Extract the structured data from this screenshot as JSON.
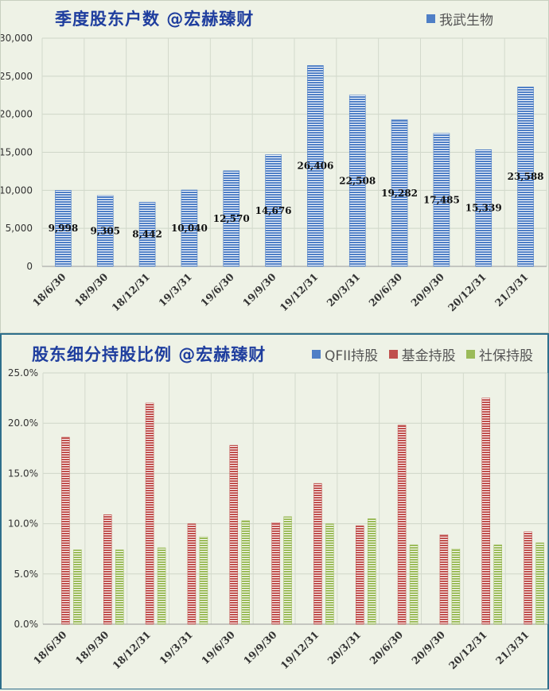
{
  "chart_data": [
    {
      "type": "bar",
      "title": "季度股东户数 @宏赫臻财",
      "categories": [
        "18/6/30",
        "18/9/30",
        "18/12/31",
        "19/3/31",
        "19/6/30",
        "19/9/30",
        "19/12/31",
        "20/3/31",
        "20/6/30",
        "20/9/30",
        "20/12/31",
        "21/3/31"
      ],
      "series": [
        {
          "name": "我武生物",
          "values": [
            9998,
            9305,
            8442,
            10040,
            12570,
            14676,
            26406,
            22508,
            19282,
            17485,
            15339,
            23588
          ],
          "color": "#4f7fc6"
        }
      ],
      "data_labels": [
        "9,998",
        "9,305",
        "8,442",
        "10,040",
        "12,570",
        "14,676",
        "26,406",
        "22,508",
        "19,282",
        "17,485",
        "15,339",
        "23,588"
      ],
      "ylim": [
        0,
        30000
      ],
      "yticks": [
        0,
        5000,
        10000,
        15000,
        20000,
        25000,
        30000
      ],
      "ytick_labels": [
        "0",
        "5,000",
        "10,000",
        "15,000",
        "20,000",
        "25,000",
        "30,000"
      ],
      "legend_position": "top-right",
      "grid": true
    },
    {
      "type": "bar",
      "title": "股东细分持股比例 @宏赫臻财",
      "categories": [
        "18/6/30",
        "18/9/30",
        "18/12/31",
        "19/3/31",
        "19/6/30",
        "19/9/30",
        "19/12/31",
        "20/3/31",
        "20/6/30",
        "20/9/30",
        "20/12/31",
        "21/3/31"
      ],
      "series": [
        {
          "name": "QFII持股",
          "values": [
            0,
            0,
            0,
            0,
            0,
            0,
            0,
            0,
            0,
            0,
            0,
            0
          ],
          "color": "#4f7fc6"
        },
        {
          "name": "基金持股",
          "values": [
            18.6,
            10.9,
            22.0,
            10.0,
            17.8,
            10.1,
            14.0,
            9.8,
            19.8,
            8.9,
            22.5,
            9.2
          ],
          "color": "#c0504d"
        },
        {
          "name": "社保持股",
          "values": [
            7.4,
            7.4,
            7.6,
            8.7,
            10.3,
            10.7,
            10.0,
            10.5,
            7.9,
            7.5,
            7.9,
            8.1
          ],
          "color": "#9bbb59"
        }
      ],
      "ylim": [
        0,
        25
      ],
      "yticks": [
        0,
        5,
        10,
        15,
        20,
        25
      ],
      "ytick_labels": [
        "0.0%",
        "5.0%",
        "10.0%",
        "15.0%",
        "20.0%",
        "25.0%"
      ],
      "legend_position": "top-right",
      "grid": true
    }
  ]
}
